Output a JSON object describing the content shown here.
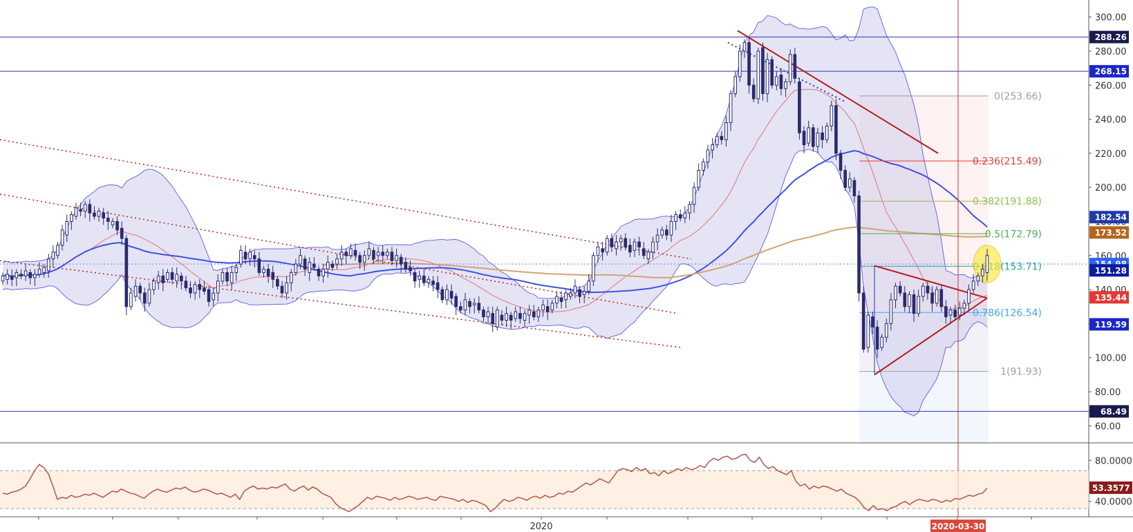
{
  "chart_data": [
    {
      "type": "candlestick",
      "panel": "price",
      "ylim": [
        50,
        310
      ],
      "y_ticks": [
        "300.00",
        "280.00",
        "260.00",
        "240.00",
        "220.00",
        "200.00",
        "180.00",
        "160.00",
        "140.00",
        "120.00",
        "100.00",
        "80.00",
        "60.00"
      ],
      "x_labels": [
        "2020",
        "2020-03-30"
      ],
      "candles": [
        [
          145,
          148
        ],
        [
          146,
          149
        ],
        [
          148,
          146
        ],
        [
          147,
          150
        ],
        [
          149,
          148
        ],
        [
          148,
          151
        ],
        [
          150,
          147
        ],
        [
          147,
          149
        ],
        [
          149,
          152
        ],
        [
          150,
          153
        ],
        [
          151,
          158
        ],
        [
          158,
          162
        ],
        [
          160,
          166
        ],
        [
          166,
          175
        ],
        [
          172,
          180
        ],
        [
          180,
          184
        ],
        [
          183,
          188
        ],
        [
          187,
          186
        ],
        [
          186,
          190
        ],
        [
          190,
          185
        ],
        [
          185,
          183
        ],
        [
          183,
          186
        ],
        [
          185,
          182
        ],
        [
          182,
          180
        ],
        [
          178,
          180
        ],
        [
          180,
          175
        ],
        [
          176,
          170
        ],
        [
          170,
          130
        ],
        [
          130,
          138
        ],
        [
          136,
          142
        ],
        [
          142,
          138
        ],
        [
          138,
          132
        ],
        [
          132,
          140
        ],
        [
          140,
          145
        ],
        [
          144,
          148
        ],
        [
          148,
          144
        ],
        [
          146,
          150
        ],
        [
          150,
          146
        ],
        [
          145,
          149
        ],
        [
          148,
          145
        ],
        [
          145,
          141
        ],
        [
          141,
          138
        ],
        [
          138,
          143
        ],
        [
          143,
          140
        ],
        [
          141,
          139
        ],
        [
          140,
          133
        ],
        [
          134,
          138
        ],
        [
          138,
          145
        ],
        [
          145,
          150
        ],
        [
          150,
          145
        ],
        [
          144,
          150
        ],
        [
          150,
          153
        ],
        [
          155,
          163
        ],
        [
          162,
          158
        ],
        [
          158,
          162
        ],
        [
          160,
          158
        ],
        [
          158,
          150
        ],
        [
          150,
          152
        ],
        [
          152,
          148
        ],
        [
          150,
          146
        ],
        [
          146,
          142
        ],
        [
          142,
          138
        ],
        [
          138,
          144
        ],
        [
          144,
          150
        ],
        [
          150,
          155
        ],
        [
          155,
          160
        ],
        [
          158,
          152
        ],
        [
          150,
          156
        ],
        [
          155,
          153
        ],
        [
          152,
          148
        ],
        [
          148,
          152
        ],
        [
          152,
          156
        ],
        [
          155,
          153
        ],
        [
          155,
          158
        ],
        [
          158,
          162
        ],
        [
          162,
          160
        ],
        [
          160,
          164
        ],
        [
          163,
          160
        ],
        [
          160,
          156
        ],
        [
          156,
          160
        ],
        [
          160,
          164
        ],
        [
          163,
          158
        ],
        [
          160,
          162
        ],
        [
          162,
          160
        ],
        [
          160,
          162
        ],
        [
          162,
          157
        ],
        [
          157,
          160
        ],
        [
          159,
          155
        ],
        [
          156,
          152
        ],
        [
          153,
          151
        ],
        [
          150,
          145
        ],
        [
          146,
          148
        ],
        [
          148,
          144
        ],
        [
          144,
          146
        ],
        [
          145,
          143
        ],
        [
          144,
          140
        ],
        [
          140,
          134
        ],
        [
          134,
          140
        ],
        [
          139,
          135
        ],
        [
          136,
          130
        ],
        [
          130,
          128
        ],
        [
          128,
          134
        ],
        [
          133,
          130
        ],
        [
          131,
          132
        ],
        [
          132,
          128
        ],
        [
          128,
          124
        ],
        [
          124,
          127
        ],
        [
          126,
          120
        ],
        [
          118,
          128
        ],
        [
          125,
          122
        ],
        [
          122,
          126
        ],
        [
          125,
          122
        ],
        [
          123,
          127
        ],
        [
          126,
          123
        ],
        [
          122,
          126
        ],
        [
          125,
          128
        ],
        [
          127,
          124
        ],
        [
          124,
          128
        ],
        [
          128,
          131
        ],
        [
          130,
          127
        ],
        [
          128,
          132
        ],
        [
          132,
          136
        ],
        [
          135,
          133
        ],
        [
          134,
          138
        ],
        [
          136,
          138
        ],
        [
          138,
          142
        ],
        [
          140,
          136
        ],
        [
          137,
          139
        ],
        [
          139,
          145
        ],
        [
          145,
          160
        ],
        [
          160,
          165
        ],
        [
          164,
          162
        ],
        [
          162,
          170
        ],
        [
          170,
          165
        ],
        [
          164,
          168
        ],
        [
          168,
          170
        ],
        [
          170,
          165
        ],
        [
          166,
          162
        ],
        [
          163,
          168
        ],
        [
          168,
          165
        ],
        [
          164,
          160
        ],
        [
          158,
          162
        ],
        [
          162,
          168
        ],
        [
          168,
          172
        ],
        [
          172,
          175
        ],
        [
          175,
          172
        ],
        [
          172,
          180
        ],
        [
          180,
          184
        ],
        [
          184,
          182
        ],
        [
          182,
          185
        ],
        [
          185,
          190
        ],
        [
          190,
          200
        ],
        [
          200,
          210
        ],
        [
          210,
          215
        ],
        [
          215,
          222
        ],
        [
          222,
          225
        ],
        [
          225,
          230
        ],
        [
          230,
          228
        ],
        [
          228,
          238
        ],
        [
          238,
          255
        ],
        [
          255,
          265
        ],
        [
          265,
          280
        ],
        [
          280,
          285
        ],
        [
          285,
          260
        ],
        [
          260,
          252
        ],
        [
          252,
          280
        ],
        [
          282,
          255
        ],
        [
          255,
          275
        ],
        [
          275,
          260
        ],
        [
          260,
          265
        ],
        [
          266,
          258
        ],
        [
          258,
          262
        ],
        [
          262,
          278
        ],
        [
          278,
          264
        ],
        [
          262,
          232
        ],
        [
          233,
          225
        ],
        [
          226,
          235
        ],
        [
          235,
          224
        ],
        [
          224,
          232
        ],
        [
          232,
          228
        ],
        [
          228,
          236
        ],
        [
          236,
          248
        ],
        [
          248,
          220
        ],
        [
          220,
          210
        ],
        [
          210,
          200
        ],
        [
          200,
          205
        ],
        [
          204,
          195
        ],
        [
          195,
          138
        ],
        [
          138,
          105
        ],
        [
          106,
          125
        ],
        [
          124,
          118
        ],
        [
          118,
          105
        ],
        [
          106,
          112
        ],
        [
          112,
          120
        ],
        [
          120,
          134
        ],
        [
          134,
          142
        ],
        [
          142,
          138
        ],
        [
          138,
          130
        ],
        [
          130,
          137
        ],
        [
          137,
          126
        ],
        [
          126,
          136
        ],
        [
          136,
          142
        ],
        [
          142,
          138
        ],
        [
          138,
          132
        ],
        [
          132,
          140
        ],
        [
          140,
          130
        ],
        [
          130,
          124
        ],
        [
          125,
          128
        ],
        [
          128,
          124
        ],
        [
          125,
          129
        ],
        [
          129,
          132
        ],
        [
          132,
          140
        ],
        [
          140,
          145
        ],
        [
          145,
          148
        ],
        [
          148,
          152
        ],
        [
          150,
          160
        ]
      ],
      "series": [
        {
          "name": "",
          "values": []
        }
      ],
      "horizontal_levels": [
        288.26,
        268.15,
        68.49
      ],
      "fibonacci": {
        "levels": [
          "0(253.66)",
          "0.236(215.49)",
          "0.382(191.88)",
          "0.5(172.79)",
          "0.618(153.71)",
          "0.786(126.54)",
          "1(91.93)"
        ],
        "values": [
          253.66,
          215.49,
          191.88,
          172.79,
          153.71,
          126.54,
          91.93
        ],
        "colors": [
          "#9e9e9e",
          "#e53935",
          "#8bc34a",
          "#4caf50",
          "#26a69a",
          "#42a5f5",
          "#9e9e9e"
        ]
      },
      "price_badges": [
        {
          "text": "288.26",
          "value": 288.26,
          "color": "#1a1a4e"
        },
        {
          "text": "268.15",
          "value": 268.15,
          "color": "#1a27c9"
        },
        {
          "text": "182.54",
          "value": 182.54,
          "color": "#1e3aa8"
        },
        {
          "text": "173.52",
          "value": 173.52,
          "color": "#b5651d"
        },
        {
          "text": "154.98",
          "value": 154.98,
          "color": "#2962ff"
        },
        {
          "text": "151.28",
          "value": 151.28,
          "color": "#0d1b9e"
        },
        {
          "text": "135.44",
          "value": 135.44,
          "color": "#e53935"
        },
        {
          "text": "119.59",
          "value": 119.59,
          "color": "#1a27c9"
        },
        {
          "text": "68.49",
          "value": 68.49,
          "color": "#1a1a4e"
        }
      ],
      "colors": {
        "bollinger_fill": "#c9c9ec",
        "bollinger_line": "#6a6ae0",
        "ma_red": "#e57373",
        "ma_blue": "#3f51e0",
        "ma_orange": "#d4a373",
        "trendline": "#b71c1c",
        "candle": "#2a2a6e"
      }
    },
    {
      "type": "line",
      "panel": "oscillator",
      "ylim": [
        25,
        95
      ],
      "y_ticks": [
        "80.0000",
        "40.0000"
      ],
      "current_value": "53.3577",
      "bands": [
        70,
        33
      ],
      "values": [
        48,
        47,
        49,
        50,
        52,
        55,
        62,
        70,
        76,
        73,
        67,
        55,
        42,
        44,
        43,
        46,
        44,
        45,
        47,
        46,
        48,
        46,
        44,
        47,
        50,
        49,
        52,
        50,
        48,
        47,
        45,
        43,
        47,
        50,
        52,
        50,
        49,
        51,
        53,
        52,
        54,
        51,
        49,
        50,
        52,
        51,
        49,
        47,
        48,
        46,
        44,
        47,
        42,
        50,
        53,
        55,
        52,
        53,
        52,
        54,
        53,
        55,
        57,
        52,
        50,
        53,
        55,
        51,
        54,
        52,
        48,
        46,
        44,
        38,
        34,
        32,
        30,
        33,
        36,
        40,
        44,
        42,
        45,
        44,
        43,
        41,
        44,
        42,
        43,
        45,
        44,
        42,
        43,
        44,
        42,
        41,
        45,
        44,
        43,
        42,
        40,
        42,
        39,
        41,
        40,
        38,
        36,
        30,
        33,
        38,
        42,
        40,
        41,
        44,
        43,
        41,
        44,
        45,
        43,
        46,
        44,
        45,
        48,
        47,
        50,
        49,
        52,
        55,
        58,
        56,
        59,
        62,
        60,
        58,
        64,
        70,
        72,
        71,
        69,
        73,
        70,
        72,
        67,
        68,
        65,
        70,
        67,
        69,
        72,
        70,
        73,
        71,
        72,
        75,
        73,
        79,
        82,
        80,
        83,
        84,
        81,
        82,
        85,
        86,
        80,
        78,
        83,
        76,
        72,
        74,
        70,
        68,
        66,
        70,
        60,
        55,
        57,
        52,
        55,
        53,
        55,
        54,
        52,
        50,
        52,
        48,
        46,
        44,
        40,
        34,
        31,
        36,
        32,
        33,
        31,
        34,
        35,
        38,
        40,
        37,
        40,
        42,
        41,
        40,
        42,
        41,
        39,
        41,
        40,
        43,
        42,
        44,
        46,
        45,
        47,
        48,
        53
      ]
    }
  ]
}
